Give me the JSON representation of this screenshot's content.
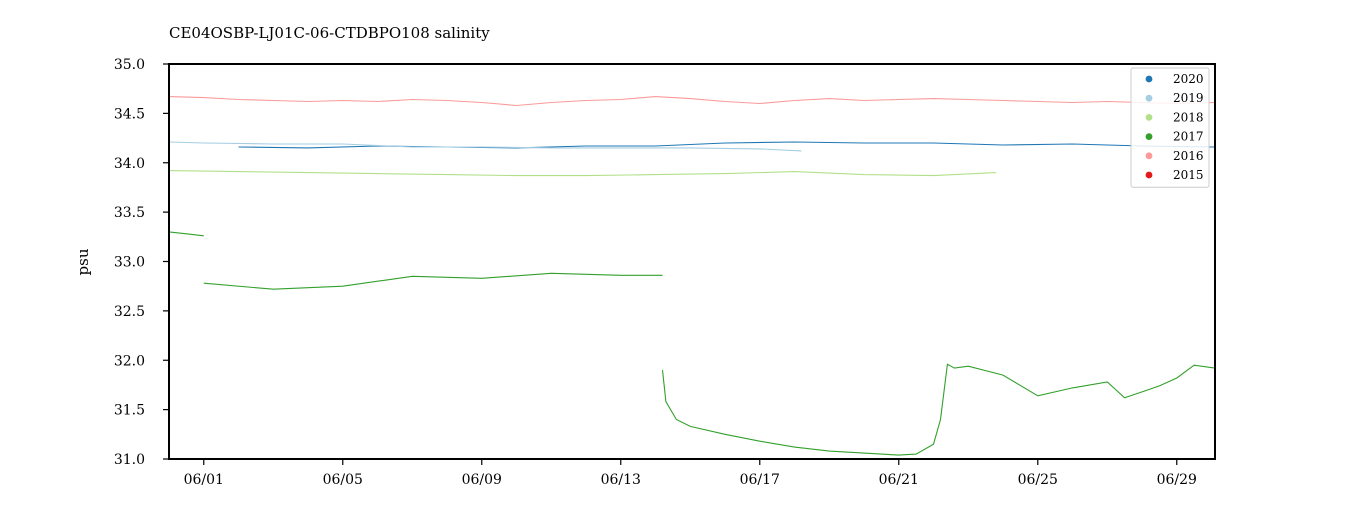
{
  "chart_data": {
    "type": "line",
    "title": "CE04OSBP-LJ01C-06-CTDBPO108 salinity",
    "xlabel": "",
    "ylabel": "psu",
    "x_axis": "date (day of June)",
    "xlim": [
      29.0,
      59.1
    ],
    "ylim": [
      31.0,
      35.0
    ],
    "x_ticks": [
      {
        "label": "06/01",
        "value": 30
      },
      {
        "label": "06/05",
        "value": 34
      },
      {
        "label": "06/09",
        "value": 38
      },
      {
        "label": "06/13",
        "value": 42
      },
      {
        "label": "06/17",
        "value": 46
      },
      {
        "label": "06/21",
        "value": 50
      },
      {
        "label": "06/25",
        "value": 54
      },
      {
        "label": "06/29",
        "value": 58
      }
    ],
    "y_ticks": [
      "31.0",
      "31.5",
      "32.0",
      "32.5",
      "33.0",
      "33.5",
      "34.0",
      "34.5",
      "35.0"
    ],
    "grid": false,
    "legend_position": "top-right",
    "series": [
      {
        "name": "2020",
        "color": "#1f78b4",
        "x": [
          31.0,
          33.0,
          35.0,
          37.0,
          39.0,
          41.0,
          43.0,
          45.0,
          47.0,
          49.0,
          51.0,
          53.0,
          55.0,
          57.0,
          59.1
        ],
        "y": [
          34.16,
          34.15,
          34.17,
          34.16,
          34.15,
          34.17,
          34.17,
          34.2,
          34.21,
          34.2,
          34.2,
          34.18,
          34.19,
          34.17,
          34.16
        ]
      },
      {
        "name": "2019",
        "color": "#a6cee3",
        "x": [
          29.0,
          30.0,
          32.0,
          34.0,
          36.0,
          38.0,
          40.0,
          42.0,
          44.0,
          46.0,
          47.2
        ],
        "y": [
          34.21,
          34.2,
          34.19,
          34.19,
          34.16,
          34.16,
          34.15,
          34.15,
          34.15,
          34.14,
          34.12
        ]
      },
      {
        "name": "2018",
        "color": "#b2df8a",
        "x": [
          29.0,
          31.0,
          33.0,
          35.0,
          37.0,
          39.0,
          41.0,
          43.0,
          45.0,
          47.0,
          49.0,
          51.0,
          52.8
        ],
        "y": [
          33.92,
          33.91,
          33.9,
          33.89,
          33.88,
          33.87,
          33.87,
          33.88,
          33.89,
          33.91,
          33.88,
          33.87,
          33.9
        ]
      },
      {
        "name": "2017",
        "color": "#33a02c",
        "segments": [
          {
            "x": [
              29.0,
              29.5,
              30.0
            ],
            "y": [
              33.3,
              33.28,
              33.26
            ]
          },
          {
            "x": [
              30.0,
              32.0,
              34.0,
              36.0,
              38.0,
              40.0,
              42.0,
              43.2
            ],
            "y": [
              32.78,
              32.72,
              32.75,
              32.85,
              32.83,
              32.88,
              32.86,
              32.86
            ]
          },
          {
            "x": [
              43.2,
              43.3,
              43.6,
              44.0,
              45.0,
              46.0,
              47.0,
              48.0,
              49.0,
              50.0,
              50.5,
              51.0,
              51.2,
              51.4,
              51.6,
              52.0,
              53.0,
              54.0,
              55.0,
              56.0,
              56.5,
              57.0,
              57.5,
              58.0,
              58.5,
              59.1
            ],
            "y": [
              31.9,
              31.58,
              31.4,
              31.33,
              31.25,
              31.18,
              31.12,
              31.08,
              31.06,
              31.04,
              31.05,
              31.15,
              31.4,
              31.96,
              31.92,
              31.94,
              31.85,
              31.64,
              31.72,
              31.78,
              31.62,
              31.68,
              31.74,
              31.82,
              31.95,
              31.92
            ]
          }
        ]
      },
      {
        "name": "2016",
        "color": "#fb9a99",
        "x": [
          29.0,
          30.0,
          31.0,
          32.0,
          33.0,
          34.0,
          35.0,
          36.0,
          37.0,
          38.0,
          39.0,
          40.0,
          41.0,
          42.0,
          43.0,
          44.0,
          45.0,
          46.0,
          47.0,
          48.0,
          49.0,
          50.0,
          51.0,
          52.0,
          53.0,
          54.0,
          55.0,
          56.0,
          57.0,
          58.0,
          59.1
        ],
        "y": [
          34.67,
          34.66,
          34.64,
          34.63,
          34.62,
          34.63,
          34.62,
          34.64,
          34.63,
          34.61,
          34.58,
          34.61,
          34.63,
          34.64,
          34.67,
          34.65,
          34.62,
          34.6,
          34.63,
          34.65,
          34.63,
          34.64,
          34.65,
          34.64,
          34.63,
          34.62,
          34.61,
          34.62,
          34.61,
          34.6,
          34.61
        ]
      },
      {
        "name": "2015",
        "color": "#e31a1c",
        "x": [],
        "y": []
      }
    ]
  }
}
